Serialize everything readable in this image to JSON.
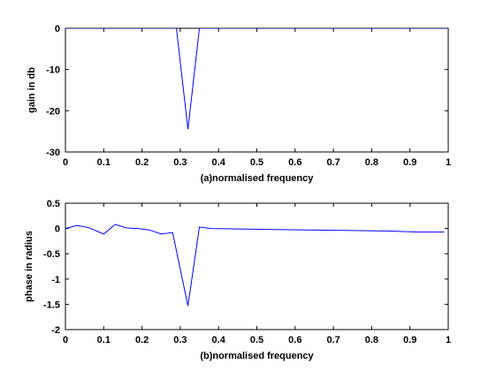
{
  "chart_data": [
    {
      "type": "line",
      "title": "",
      "xlabel": "(a)normalised frequency",
      "ylabel": "gain in db",
      "xlim": [
        0,
        1
      ],
      "ylim": [
        -30,
        0
      ],
      "xticks": [
        0,
        0.1,
        0.2,
        0.3,
        0.4,
        0.5,
        0.6,
        0.7,
        0.8,
        0.9,
        1
      ],
      "xtick_labels": [
        "0",
        "0.1",
        "0.2",
        "0.3",
        "0.4",
        "0.5",
        "0.6",
        "0.7",
        "0.8",
        "0.9",
        "1"
      ],
      "yticks": [
        0,
        -10,
        -20,
        -30
      ],
      "ytick_labels": [
        "0",
        "-10",
        "-20",
        "-30"
      ],
      "grid": false,
      "series": [
        {
          "color": "#0000ff",
          "x": [
            0,
            0.1,
            0.2,
            0.26,
            0.29,
            0.32,
            0.35,
            0.38,
            0.5,
            0.6,
            0.7,
            0.8,
            0.9,
            1.0
          ],
          "y": [
            0,
            0,
            0,
            0,
            0,
            -24.5,
            0,
            0,
            0,
            0,
            0,
            0,
            0,
            0
          ]
        }
      ]
    },
    {
      "type": "line",
      "title": "",
      "xlabel": "(b)normalised frequency",
      "ylabel": "phase in radius",
      "xlim": [
        0,
        1
      ],
      "ylim": [
        -2,
        0.5
      ],
      "xticks": [
        0,
        0.1,
        0.2,
        0.3,
        0.4,
        0.5,
        0.6,
        0.7,
        0.8,
        0.9,
        1
      ],
      "xtick_labels": [
        "0",
        "0.1",
        "0.2",
        "0.3",
        "0.4",
        "0.5",
        "0.6",
        "0.7",
        "0.8",
        "0.9",
        "1"
      ],
      "yticks": [
        0.5,
        0,
        -0.5,
        -1,
        -1.5,
        -2
      ],
      "ytick_labels": [
        "0.5",
        "0",
        "-0.5",
        "-1",
        "-1.5",
        "-2"
      ],
      "grid": false,
      "series": [
        {
          "color": "#0000ff",
          "x": [
            0,
            0.03,
            0.06,
            0.1,
            0.13,
            0.16,
            0.19,
            0.22,
            0.25,
            0.28,
            0.32,
            0.35,
            0.38,
            0.45,
            0.55,
            0.65,
            0.75,
            0.85,
            0.92,
            0.99
          ],
          "y": [
            0.0,
            0.06,
            0.02,
            -0.11,
            0.08,
            0.01,
            0.0,
            -0.03,
            -0.11,
            -0.08,
            -1.53,
            0.03,
            0.0,
            -0.01,
            -0.02,
            -0.03,
            -0.04,
            -0.05,
            -0.07,
            -0.07
          ]
        }
      ]
    }
  ]
}
